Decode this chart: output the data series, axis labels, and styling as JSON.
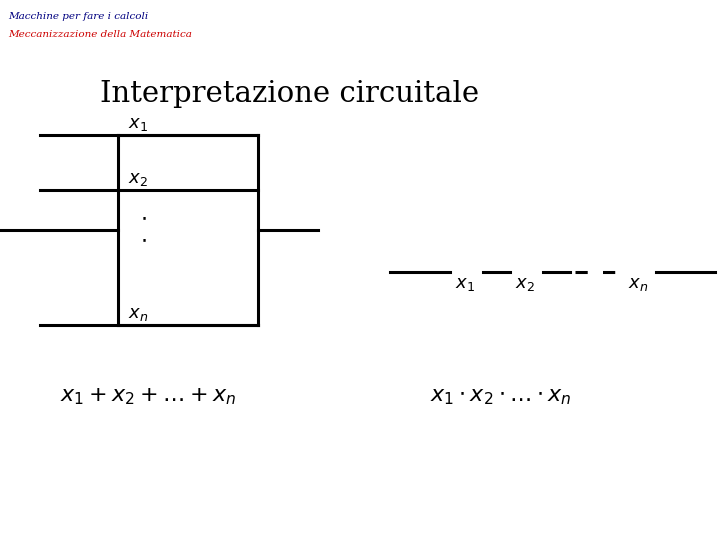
{
  "header1": "Macchine per fare i calcoli",
  "header2": "Meccanizzazione della Matematica",
  "title": "Interpretazione circuitale",
  "header1_color": "#000080",
  "header2_color": "#cc0000",
  "title_color": "#000000",
  "bg_color": "#ffffff",
  "line_color": "#000000",
  "lw": 2.2
}
